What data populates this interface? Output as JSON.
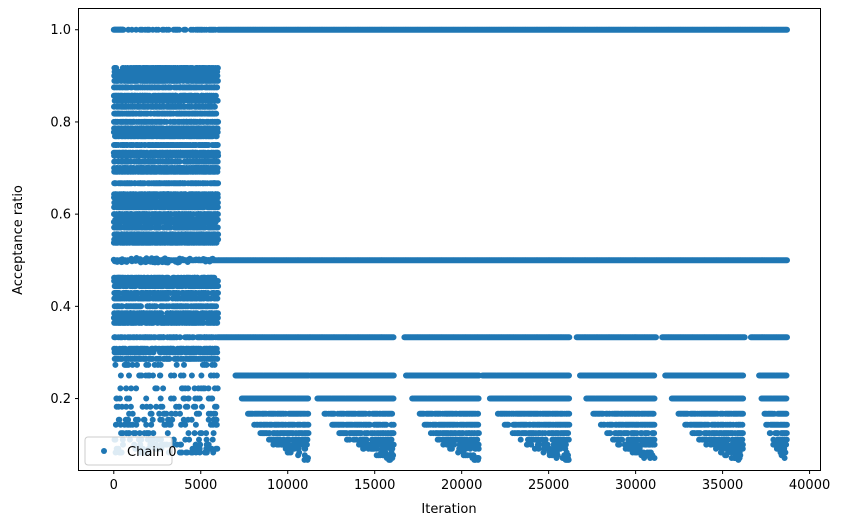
{
  "chart_data": {
    "type": "scatter",
    "xlabel": "Iteration",
    "ylabel": "Acceptance ratio",
    "xlim": [
      -2000,
      40600
    ],
    "ylim": [
      0.045,
      1.045
    ],
    "xticks": [
      0,
      5000,
      10000,
      15000,
      20000,
      25000,
      30000,
      35000,
      40000
    ],
    "xtick_labels": [
      "0",
      "5000",
      "10000",
      "15000",
      "20000",
      "25000",
      "30000",
      "35000",
      "40000"
    ],
    "yticks": [
      0.2,
      0.4,
      0.6,
      0.8,
      1.0
    ],
    "ytick_labels": [
      "0.2",
      "0.4",
      "0.6",
      "0.8",
      "1.0"
    ],
    "legend": {
      "position": "lower-left",
      "entries": [
        "Chain 0"
      ]
    },
    "grid": false,
    "series": [
      {
        "name": "Chain 0",
        "color": "#1f77b4",
        "marker": "circle",
        "x_range": [
          0,
          38700
        ],
        "phases": [
          {
            "x_range": [
              0,
              6000
            ],
            "description_values": "dense scatter",
            "levels": [
              1.0,
              0.917,
              0.909,
              0.9,
              0.889,
              0.875,
              0.857,
              0.846,
              0.833,
              0.818,
              0.8,
              0.786,
              0.778,
              0.769,
              0.75,
              0.733,
              0.727,
              0.714,
              0.7,
              0.692,
              0.667,
              0.643,
              0.636,
              0.625,
              0.615,
              0.6,
              0.588,
              0.583,
              0.571,
              0.556,
              0.545,
              0.538,
              0.5,
              0.462,
              0.455,
              0.444,
              0.429,
              0.417,
              0.4,
              0.385,
              0.375,
              0.364,
              0.333,
              0.308,
              0.3,
              0.286,
              0.273,
              0.25,
              0.222,
              0.2,
              0.182,
              0.167,
              0.154,
              0.143,
              0.125,
              0.111,
              0.1,
              0.091,
              0.083
            ]
          },
          {
            "x_range": [
              6000,
              38700
            ],
            "levels": [
              1.0,
              0.5,
              0.333,
              0.25,
              0.2,
              0.167,
              0.143,
              0.125,
              0.111,
              0.1,
              0.091,
              0.083,
              0.077,
              0.071,
              0.067,
              0.062
            ]
          }
        ]
      }
    ]
  }
}
